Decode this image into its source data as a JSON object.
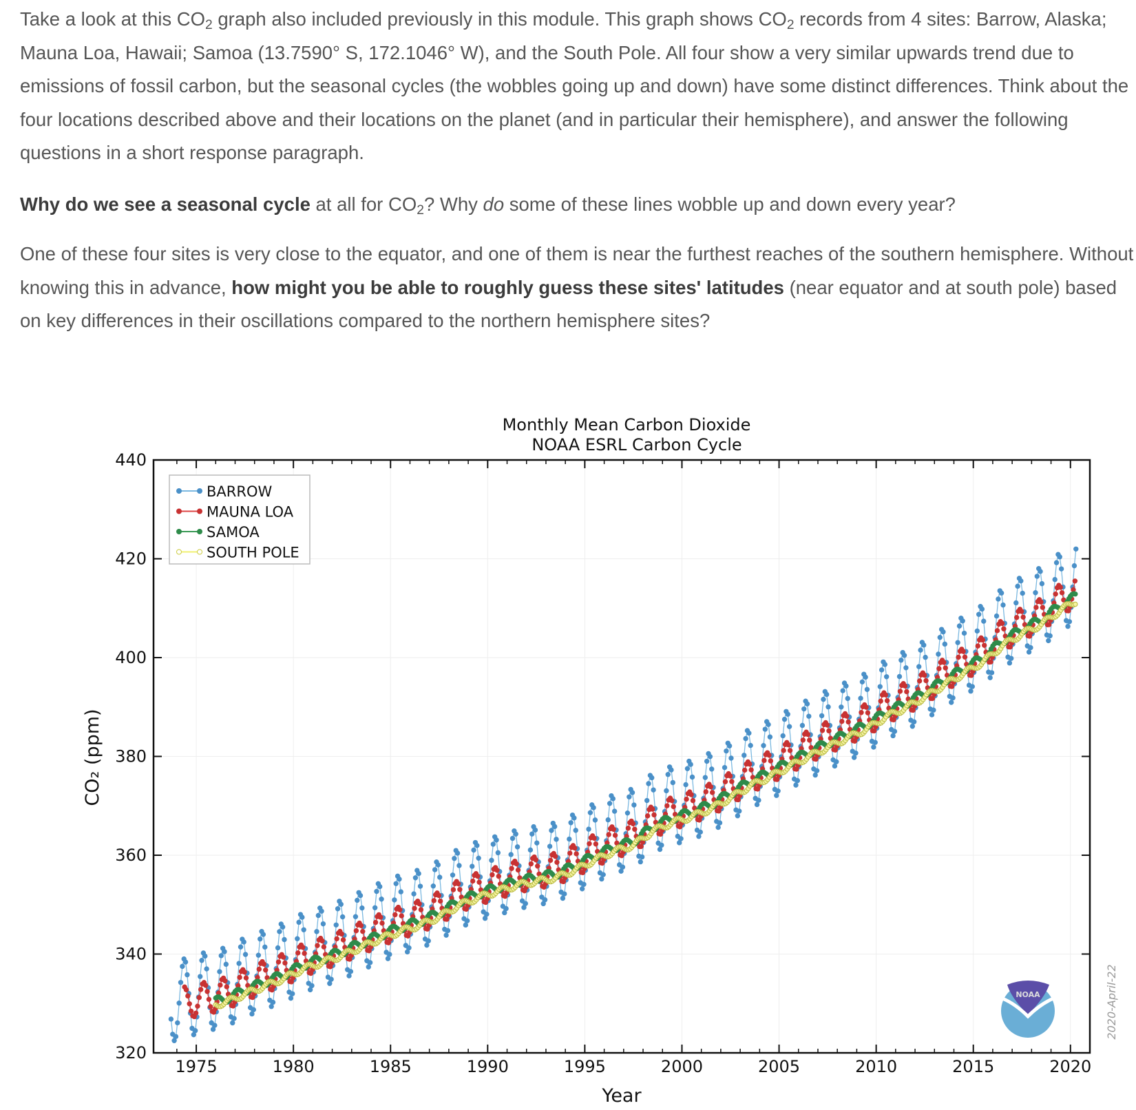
{
  "question": {
    "p1": {
      "a": "Take a look at this CO",
      "sub1": "2",
      "b": " graph also included previously in this module. This graph shows CO",
      "sub2": "2",
      "c": " records from 4 sites: Barrow, Alaska; Mauna Loa, Hawaii; Samoa (13.7590° S, 172.1046° W), and the South Pole. All four show a very similar upwards trend due to emissions of fossil carbon, but the seasonal cycles (the wobbles going up and down) have some distinct differences. Think about the four locations described above and their locations on the planet (and in particular their hemisphere), and answer the following questions in a short response paragraph."
    },
    "p2": {
      "bold": "Why do we see a seasonal cycle",
      "a": " at all for CO",
      "sub": "2",
      "b": "? Why ",
      "italic": "do",
      "c": " some of these lines wobble up and down every year?"
    },
    "p3": {
      "a": "One of these four sites is very close to the equator, and one of them is near the furthest reaches of the southern hemisphere. Without knowing this in advance, ",
      "bold": "how might you be able to roughly guess these sites' latitudes",
      "b": " (near equator and at south pole) based on key differences in their oscillations compared to the northern hemisphere sites?"
    }
  },
  "chart_data": {
    "type": "line",
    "title": "Monthly Mean Carbon Dioxide",
    "subtitle": "NOAA ESRL Carbon Cycle",
    "xlabel": "Year",
    "ylabel": "CO₂ (ppm)",
    "xlim": [
      1972.8,
      2021.0
    ],
    "ylim": [
      320,
      440
    ],
    "xticks": [
      1975,
      1980,
      1985,
      1990,
      1995,
      2000,
      2005,
      2010,
      2015,
      2020
    ],
    "yticks": [
      320,
      340,
      360,
      380,
      400,
      420,
      440
    ],
    "grid": true,
    "legend_position": "top-left",
    "date_stamp": "2020-April-22",
    "logo": "NOAA",
    "years": [
      1974,
      1975,
      1976,
      1977,
      1978,
      1979,
      1980,
      1981,
      1982,
      1983,
      1984,
      1985,
      1986,
      1987,
      1988,
      1989,
      1990,
      1991,
      1992,
      1993,
      1994,
      1995,
      1996,
      1997,
      1998,
      1999,
      2000,
      2001,
      2002,
      2003,
      2004,
      2005,
      2006,
      2007,
      2008,
      2009,
      2010,
      2011,
      2012,
      2013,
      2014,
      2015,
      2016,
      2017,
      2018,
      2019,
      2020
    ],
    "series": [
      {
        "name": "BARROW",
        "color": "#4a90c8",
        "line_color": "#7ab8e0",
        "marker": "filled",
        "start": 1973.7,
        "end": 2020.3,
        "seasonal_amplitude_ppm": 16,
        "annual_mean": [
          331.2,
          332.4,
          333.3,
          335.3,
          336.8,
          338.3,
          340.3,
          341.5,
          342.9,
          344.7,
          346.5,
          348.0,
          349.1,
          350.9,
          353.3,
          354.8,
          355.9,
          357.1,
          357.9,
          358.6,
          360.4,
          362.5,
          364.3,
          365.5,
          368.6,
          370.1,
          371.2,
          372.8,
          375.0,
          377.6,
          379.3,
          381.4,
          383.5,
          385.4,
          387.1,
          388.9,
          391.5,
          393.3,
          395.4,
          398.1,
          400.3,
          402.7,
          406.0,
          408.4,
          410.3,
          413.3,
          416.0
        ]
      },
      {
        "name": "MAUNA LOA",
        "color": "#c83232",
        "line_color": "#d44",
        "marker": "filled",
        "start": 1974.4,
        "end": 2020.3,
        "seasonal_amplitude_ppm": 6.5,
        "annual_mean": [
          330.2,
          331.1,
          332.0,
          333.8,
          335.4,
          336.8,
          338.8,
          340.1,
          341.5,
          343.2,
          344.9,
          346.4,
          347.6,
          349.3,
          351.7,
          353.2,
          354.4,
          355.7,
          356.5,
          357.2,
          358.9,
          360.9,
          362.7,
          363.8,
          366.8,
          368.5,
          369.7,
          371.3,
          373.5,
          375.9,
          377.7,
          379.8,
          381.9,
          383.8,
          385.6,
          387.4,
          389.9,
          391.7,
          393.9,
          396.5,
          398.7,
          401.0,
          404.4,
          406.8,
          408.7,
          411.7,
          414.2
        ]
      },
      {
        "name": "SAMOA",
        "color": "#2e8b4a",
        "line_color": "#3a9a55",
        "marker": "filled",
        "start": 1976.0,
        "end": 2020.3,
        "seasonal_amplitude_ppm": 1.6,
        "annual_mean": [
          329.2,
          330.0,
          330.9,
          332.7,
          334.3,
          335.8,
          337.8,
          339.1,
          340.5,
          342.2,
          343.9,
          345.4,
          346.6,
          348.3,
          350.6,
          352.2,
          353.5,
          354.7,
          355.5,
          356.2,
          357.9,
          359.9,
          361.6,
          362.8,
          365.8,
          367.5,
          368.7,
          370.3,
          372.5,
          374.9,
          376.7,
          378.8,
          380.8,
          382.7,
          384.6,
          386.4,
          388.9,
          390.7,
          392.9,
          395.4,
          397.7,
          400.0,
          403.4,
          405.7,
          407.7,
          410.6,
          413.0
        ]
      },
      {
        "name": "SOUTH POLE",
        "color": "#d8d860",
        "line_color": "#f0f070",
        "marker": "open",
        "start": 1976.0,
        "end": 2020.3,
        "seasonal_amplitude_ppm": 1.2,
        "annual_mean": [
          328.6,
          329.3,
          330.2,
          331.9,
          333.5,
          335.0,
          337.0,
          338.3,
          339.7,
          341.4,
          343.1,
          344.6,
          345.8,
          347.5,
          349.8,
          351.4,
          352.7,
          353.9,
          354.7,
          355.4,
          357.0,
          359.0,
          360.8,
          362.0,
          364.9,
          366.6,
          367.8,
          369.4,
          371.6,
          374.0,
          375.8,
          377.9,
          379.9,
          381.8,
          383.7,
          385.5,
          388.0,
          389.8,
          392.0,
          394.5,
          396.8,
          399.1,
          402.4,
          404.8,
          406.7,
          409.6,
          412.0
        ]
      }
    ]
  }
}
